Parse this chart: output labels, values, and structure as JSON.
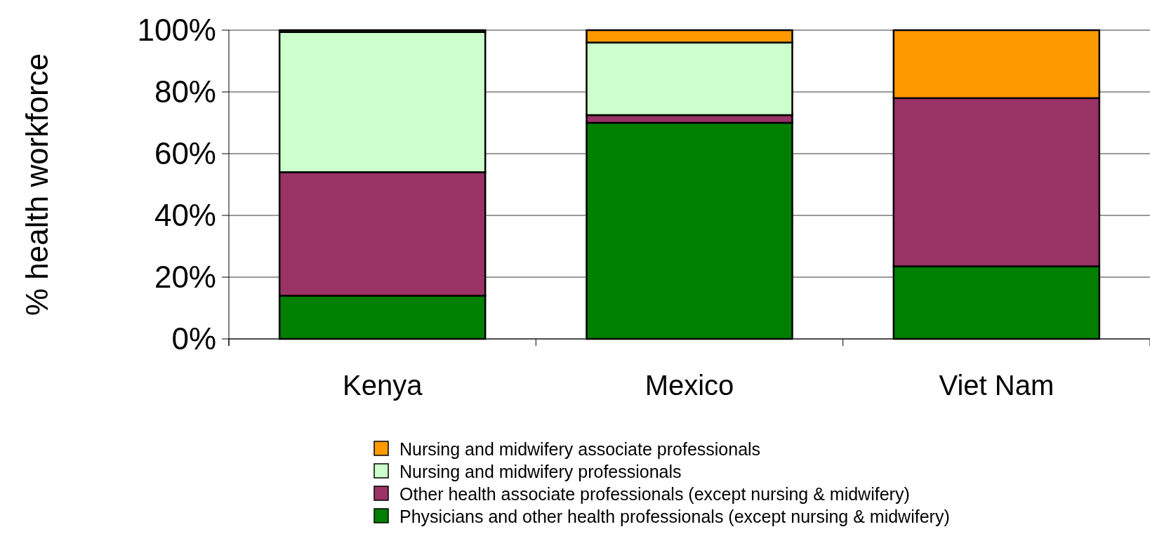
{
  "chart_data": {
    "type": "bar",
    "stacked": true,
    "ylabel": "% health workforce",
    "categories": [
      "Kenya",
      "Mexico",
      "Viet Nam"
    ],
    "series": [
      {
        "name": "Physicians and other health professionals (except nursing & midwifery)",
        "color": "#007f00",
        "values": [
          14,
          70,
          23.5
        ]
      },
      {
        "name": "Other health associate professionals (except nursing & midwifery)",
        "color": "#993366",
        "values": [
          40,
          2.5,
          54.5
        ]
      },
      {
        "name": "Nursing and midwifery professionals",
        "color": "#ccffcc",
        "values": [
          45.4,
          23.5,
          0
        ]
      },
      {
        "name": "Nursing and midwifery associate professionals",
        "color": "#ff9900",
        "values": [
          0.6,
          4,
          22
        ]
      }
    ],
    "ylim": [
      0,
      100
    ],
    "yticks": [
      {
        "value": 0,
        "label": "0%"
      },
      {
        "value": 20,
        "label": "20%"
      },
      {
        "value": 40,
        "label": "40%"
      },
      {
        "value": 60,
        "label": "60%"
      },
      {
        "value": 80,
        "label": "80%"
      },
      {
        "value": 100,
        "label": "100%"
      }
    ],
    "grid": "y",
    "legend": "bottom"
  }
}
